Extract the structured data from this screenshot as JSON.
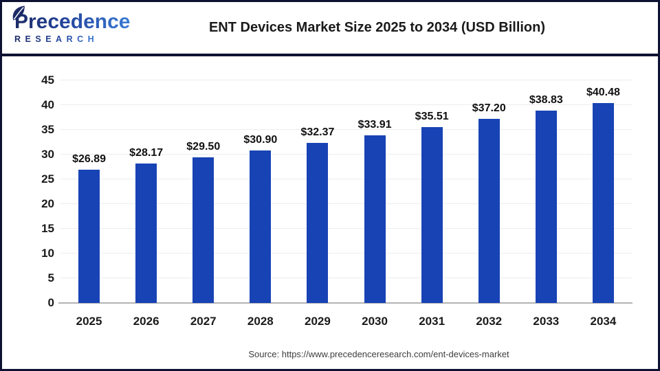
{
  "header": {
    "logo_line1": "Precedence",
    "logo_line2": "RESEARCH",
    "title": "ENT Devices Market Size 2025 to 2034 (USD Billion)"
  },
  "chart_data": {
    "type": "bar",
    "title": "ENT Devices Market Size 2025 to 2034 (USD Billion)",
    "categories": [
      "2025",
      "2026",
      "2027",
      "2028",
      "2029",
      "2030",
      "2031",
      "2032",
      "2033",
      "2034"
    ],
    "values": [
      26.89,
      28.17,
      29.5,
      30.9,
      32.37,
      33.91,
      35.51,
      37.2,
      38.83,
      40.48
    ],
    "value_prefix": "$",
    "xlabel": "",
    "ylabel": "",
    "ylim": [
      0,
      45
    ],
    "yticks": [
      0,
      5,
      10,
      15,
      20,
      25,
      30,
      35,
      40,
      45
    ],
    "grid": true,
    "legend": "none",
    "bar_color": "#1843b5"
  },
  "footer": {
    "source": "Source: https://www.precedenceresearch.com/ent-devices-market"
  },
  "colors": {
    "accent_bar": "#1843b5",
    "border_navy": "#0d1233",
    "separator_navy": "#0e1233",
    "text_dark": "#1a1a1a",
    "gridline": "#ececec",
    "axis_line": "#b3b3b3",
    "logo_navy": "#1c2a66",
    "logo_blue": "#3a7bd5"
  }
}
